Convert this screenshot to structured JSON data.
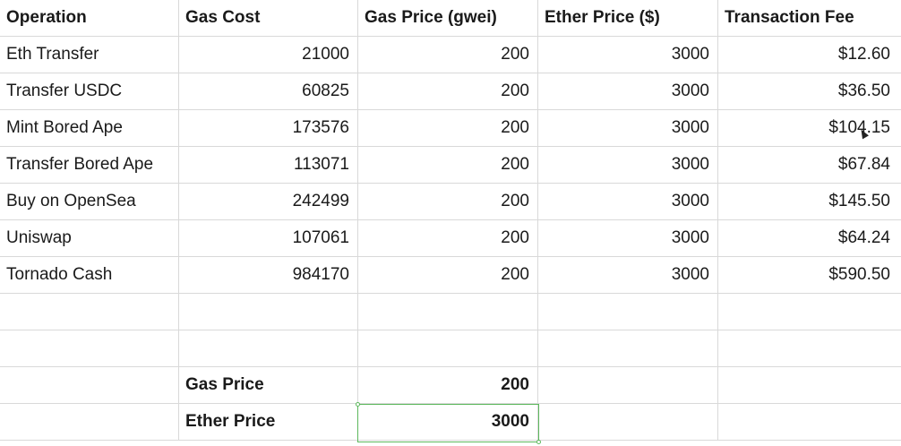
{
  "headers": [
    "Operation",
    "Gas Cost",
    "Gas Price (gwei)",
    "Ether Price ($)",
    "Transaction Fee"
  ],
  "rows": [
    {
      "operation": "Eth Transfer",
      "gas_cost": "21000",
      "gas_price": "200",
      "ether_price": "3000",
      "fee": "$12.60"
    },
    {
      "operation": "Transfer USDC",
      "gas_cost": "60825",
      "gas_price": "200",
      "ether_price": "3000",
      "fee": "$36.50"
    },
    {
      "operation": "Mint Bored Ape",
      "gas_cost": "173576",
      "gas_price": "200",
      "ether_price": "3000",
      "fee": "$104.15"
    },
    {
      "operation": "Transfer Bored Ape",
      "gas_cost": "113071",
      "gas_price": "200",
      "ether_price": "3000",
      "fee": "$67.84"
    },
    {
      "operation": "Buy on OpenSea",
      "gas_cost": "242499",
      "gas_price": "200",
      "ether_price": "3000",
      "fee": "$145.50"
    },
    {
      "operation": "Uniswap",
      "gas_cost": "107061",
      "gas_price": "200",
      "ether_price": "3000",
      "fee": "$64.24"
    },
    {
      "operation": "Tornado Cash",
      "gas_cost": "984170",
      "gas_price": "200",
      "ether_price": "3000",
      "fee": "$590.50"
    }
  ],
  "inputs": {
    "gas_price_label": "Gas Price",
    "gas_price_value": "200",
    "ether_price_label": "Ether Price",
    "ether_price_value": "3000"
  },
  "colors": {
    "gridline": "#d9d9d9",
    "selection": "#5cb85c"
  }
}
